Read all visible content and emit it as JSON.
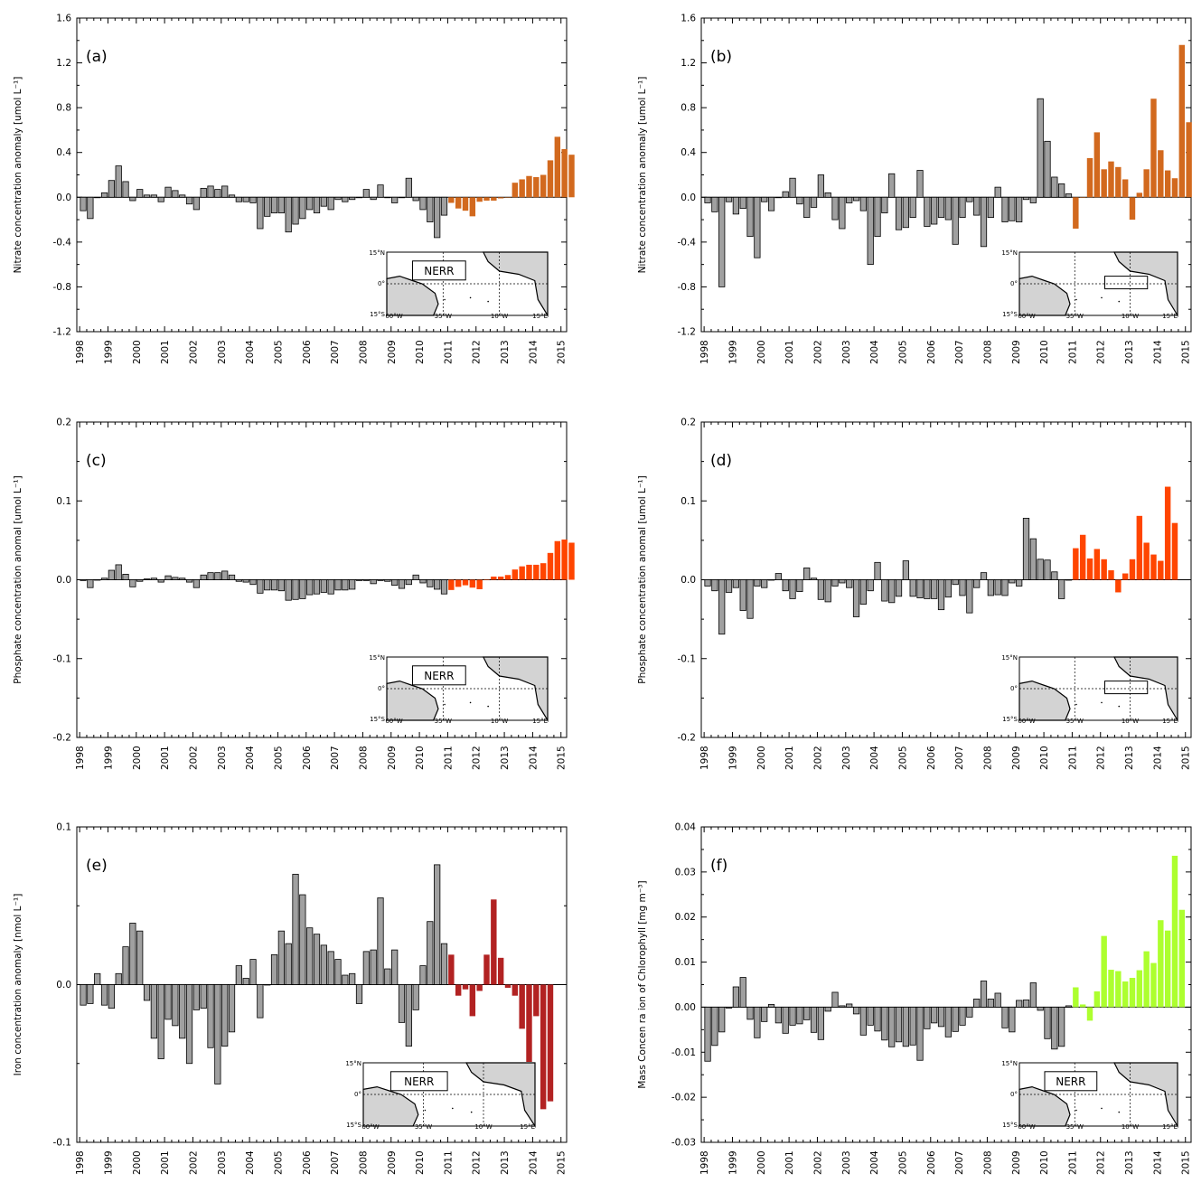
{
  "years": [
    "1998",
    "1999",
    "2000",
    "2001",
    "2002",
    "2003",
    "2004",
    "2005",
    "2006",
    "2007",
    "2008",
    "2009",
    "2010",
    "2011",
    "2012",
    "2013",
    "2014",
    "2015"
  ],
  "inset": {
    "lat_labels": [
      "15°N",
      "0°",
      "15°S"
    ],
    "lon_labels": [
      "60°W",
      "35°W",
      "10°W",
      "15°E"
    ],
    "region_label": "NERR"
  },
  "colors": {
    "gray": "#a0a0a0",
    "nitrate": "#d2691e",
    "phosphate": "#ff4500",
    "iron": "#b22222",
    "chlorophyll": "#adff2f",
    "land": "#d3d3d3"
  },
  "chart_data": [
    {
      "panel": "(a)",
      "type": "bar",
      "ylabel": "Nitrate concentration anomaly [umol L⁻¹]",
      "ylim": [
        -1.2,
        1.6
      ],
      "yticks": [
        "1.6",
        "1.2",
        "0.8",
        "0.4",
        "0.0",
        "-0.4",
        "-0.8",
        "-1.2"
      ],
      "yticks_values": [
        1.6,
        1.2,
        0.8,
        0.4,
        0.0,
        -0.4,
        -0.8,
        -1.2
      ],
      "x_start": 1998.0,
      "step": 0.25,
      "highlight_from": 52,
      "color": "nitrate",
      "inset": "label",
      "values": [
        -0.12,
        -0.19,
        0.0,
        0.04,
        0.15,
        0.28,
        0.14,
        -0.03,
        0.07,
        0.02,
        0.02,
        -0.04,
        0.09,
        0.06,
        0.02,
        -0.06,
        -0.11,
        0.08,
        0.1,
        0.07,
        0.1,
        0.02,
        -0.04,
        -0.04,
        -0.05,
        -0.28,
        -0.17,
        -0.14,
        -0.14,
        -0.31,
        -0.24,
        -0.19,
        -0.11,
        -0.14,
        -0.08,
        -0.11,
        -0.02,
        -0.04,
        -0.02,
        0.0,
        0.07,
        -0.02,
        0.11,
        0.0,
        -0.05,
        0.0,
        0.17,
        -0.03,
        -0.11,
        -0.22,
        -0.36,
        -0.16,
        -0.05,
        -0.1,
        -0.12,
        -0.17,
        -0.04,
        -0.03,
        -0.03,
        -0.01,
        0.0,
        0.13,
        0.16,
        0.19,
        0.18,
        0.2,
        0.33,
        0.54,
        0.43,
        0.38
      ]
    },
    {
      "panel": "(b)",
      "type": "bar",
      "ylabel": "Nitrate concentration anomaly [umol L⁻¹]",
      "ylim": [
        -1.2,
        1.6
      ],
      "yticks": [
        "1.6",
        "1.2",
        "0.8",
        "0.4",
        "0.0",
        "-0.4",
        "-0.8",
        "-1.2"
      ],
      "yticks_values": [
        1.6,
        1.2,
        0.8,
        0.4,
        0.0,
        -0.4,
        -0.8,
        -1.2
      ],
      "x_start": 1998.0,
      "step": 0.25,
      "highlight_from": 52,
      "color": "nitrate",
      "inset": "box",
      "values": [
        -0.05,
        -0.13,
        -0.8,
        -0.04,
        -0.15,
        -0.1,
        -0.35,
        -0.54,
        -0.04,
        -0.12,
        0.0,
        0.05,
        0.17,
        -0.06,
        -0.18,
        -0.09,
        0.2,
        0.04,
        -0.2,
        -0.28,
        -0.05,
        -0.03,
        -0.12,
        -0.6,
        -0.35,
        -0.14,
        0.21,
        -0.29,
        -0.27,
        -0.18,
        0.24,
        -0.26,
        -0.24,
        -0.18,
        -0.2,
        -0.42,
        -0.18,
        -0.04,
        -0.16,
        -0.44,
        -0.18,
        0.09,
        -0.22,
        -0.21,
        -0.22,
        -0.02,
        -0.05,
        0.88,
        0.5,
        0.18,
        0.12,
        0.03,
        -0.28,
        0.0,
        0.35,
        0.58,
        0.25,
        0.32,
        0.27,
        0.16,
        -0.2,
        0.04,
        0.25,
        0.88,
        0.42,
        0.24,
        0.17,
        1.36,
        0.67
      ]
    },
    {
      "panel": "(c)",
      "type": "bar",
      "ylabel": "Phosphate concentration anomal  [umol L⁻¹]",
      "ylim": [
        -0.2,
        0.2
      ],
      "yticks": [
        "0.2",
        "0.1",
        "0.0",
        "-0.1",
        "-0.2"
      ],
      "yticks_values": [
        0.2,
        0.1,
        0.0,
        -0.1,
        -0.2
      ],
      "x_start": 1998.0,
      "step": 0.25,
      "highlight_from": 52,
      "color": "phosphate",
      "inset": "label",
      "values": [
        -0.001,
        -0.01,
        0.0,
        0.002,
        0.012,
        0.019,
        0.007,
        -0.009,
        -0.002,
        0.001,
        0.002,
        -0.003,
        0.005,
        0.003,
        0.002,
        -0.003,
        -0.01,
        0.006,
        0.009,
        0.009,
        0.011,
        0.006,
        -0.002,
        -0.003,
        -0.006,
        -0.017,
        -0.013,
        -0.013,
        -0.014,
        -0.026,
        -0.025,
        -0.024,
        -0.019,
        -0.018,
        -0.016,
        -0.018,
        -0.013,
        -0.013,
        -0.012,
        -0.001,
        -0.001,
        -0.005,
        -0.001,
        -0.002,
        -0.007,
        -0.011,
        -0.006,
        0.006,
        -0.004,
        -0.009,
        -0.012,
        -0.018,
        -0.013,
        -0.009,
        -0.007,
        -0.01,
        -0.012,
        0.0,
        0.004,
        0.004,
        0.006,
        0.013,
        0.017,
        0.019,
        0.019,
        0.021,
        0.034,
        0.049,
        0.051,
        0.047
      ]
    },
    {
      "panel": "(d)",
      "type": "bar",
      "ylabel": "Phosphate concentration anomal  [umol L⁻¹]",
      "ylim": [
        -0.2,
        0.2
      ],
      "yticks": [
        "0.2",
        "0.1",
        "0.0",
        "-0.1",
        "-0.2"
      ],
      "yticks_values": [
        0.2,
        0.1,
        0.0,
        -0.1,
        -0.2
      ],
      "x_start": 1998.0,
      "step": 0.25,
      "highlight_from": 52,
      "color": "phosphate",
      "inset": "box",
      "values": [
        -0.008,
        -0.014,
        -0.069,
        -0.016,
        -0.01,
        -0.039,
        -0.049,
        -0.008,
        -0.01,
        0.0,
        0.008,
        -0.014,
        -0.024,
        -0.015,
        0.015,
        0.002,
        -0.025,
        -0.028,
        -0.008,
        -0.004,
        -0.01,
        -0.047,
        -0.031,
        -0.014,
        0.022,
        -0.027,
        -0.029,
        -0.021,
        0.024,
        -0.021,
        -0.023,
        -0.024,
        -0.024,
        -0.038,
        -0.022,
        -0.006,
        -0.02,
        -0.042,
        -0.01,
        0.009,
        -0.02,
        -0.019,
        -0.02,
        -0.004,
        -0.008,
        0.078,
        0.052,
        0.026,
        0.025,
        0.01,
        -0.024,
        0.0,
        0.04,
        0.057,
        0.027,
        0.039,
        0.026,
        0.012,
        -0.016,
        0.008,
        0.026,
        0.081,
        0.047,
        0.032,
        0.024,
        0.118,
        0.072
      ]
    },
    {
      "panel": "(e)",
      "type": "bar",
      "ylabel": "Iron concentration anomaly  [nmol L⁻¹]",
      "ylim": [
        -0.1,
        0.1
      ],
      "yticks": [
        "0.1",
        "0.0",
        "-0.1"
      ],
      "yticks_values": [
        0.1,
        0.0,
        -0.1
      ],
      "x_start": 1998.0,
      "step": 0.25,
      "highlight_from": 52,
      "color": "iron",
      "inset": "label",
      "values": [
        -0.013,
        -0.012,
        0.007,
        -0.013,
        -0.015,
        0.007,
        0.024,
        0.039,
        0.034,
        -0.01,
        -0.034,
        -0.047,
        -0.022,
        -0.026,
        -0.034,
        -0.05,
        -0.016,
        -0.015,
        -0.04,
        -0.063,
        -0.039,
        -0.03,
        0.012,
        0.004,
        0.016,
        -0.021,
        0.0,
        0.019,
        0.034,
        0.026,
        0.07,
        0.057,
        0.036,
        0.032,
        0.025,
        0.021,
        0.016,
        0.006,
        0.007,
        -0.012,
        0.021,
        0.022,
        0.055,
        0.01,
        0.022,
        -0.024,
        -0.039,
        -0.016,
        0.012,
        0.04,
        0.076,
        0.026,
        0.019,
        -0.007,
        -0.003,
        -0.02,
        -0.004,
        0.019,
        0.054,
        0.017,
        -0.002,
        -0.007,
        -0.028,
        -0.049,
        -0.02,
        -0.079,
        -0.074
      ]
    },
    {
      "panel": "(f)",
      "type": "bar",
      "ylabel": "Mass Concen ra ion of Chlorophyll [mg m⁻³]",
      "ylim": [
        -0.03,
        0.04
      ],
      "yticks": [
        "0.04",
        "0.03",
        "0.02",
        "0.01",
        "0.00",
        "-0.01",
        "-0.02",
        "-0.03"
      ],
      "yticks_values": [
        0.04,
        0.03,
        0.02,
        0.01,
        0.0,
        -0.01,
        -0.02,
        -0.03
      ],
      "x_start": 1998.0,
      "step": 0.25,
      "highlight_from": 52,
      "color": "chlorophyll",
      "inset": "label",
      "values": [
        -0.012,
        -0.0085,
        -0.0055,
        -0.0002,
        0.0045,
        0.0066,
        -0.0027,
        -0.0068,
        -0.0032,
        0.0006,
        -0.0035,
        -0.0058,
        -0.004,
        -0.0037,
        -0.0028,
        -0.0056,
        -0.0072,
        -0.0009,
        0.0033,
        0.0003,
        0.0007,
        -0.0015,
        -0.0062,
        -0.004,
        -0.0053,
        -0.0073,
        -0.0088,
        -0.0077,
        -0.0087,
        -0.0084,
        -0.0118,
        -0.0048,
        -0.0035,
        -0.0043,
        -0.0066,
        -0.0054,
        -0.004,
        -0.0022,
        0.0018,
        0.0058,
        0.0018,
        0.0031,
        -0.0046,
        -0.0055,
        0.0015,
        0.0016,
        0.0054,
        -0.0007,
        -0.007,
        -0.0093,
        -0.0087,
        0.0003,
        0.0044,
        0.0006,
        -0.003,
        0.0035,
        0.0158,
        0.0083,
        0.008,
        0.0057,
        0.0065,
        0.0082,
        0.0124,
        0.0098,
        0.0193,
        0.017,
        0.0336,
        0.0216
      ]
    }
  ]
}
